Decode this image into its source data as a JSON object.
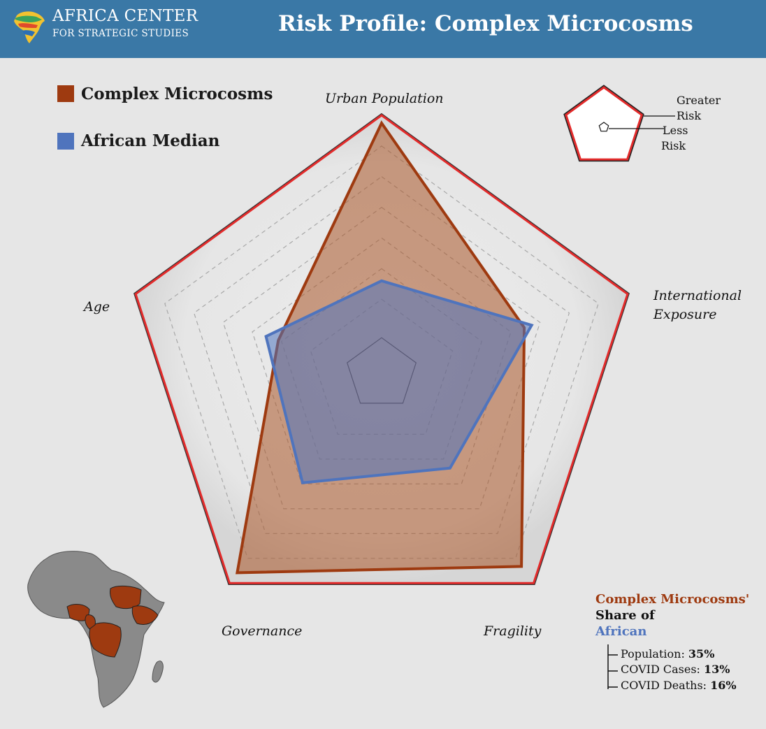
{
  "header": {
    "logo_line1": "AFRICA CENTER",
    "logo_line2": "FOR STRATEGIC STUDIES",
    "title": "Risk Profile: Complex Microcosms"
  },
  "legend": [
    {
      "label": "Complex Microcosms",
      "color": "#9e3a10"
    },
    {
      "label": "African Median",
      "color": "#4f74bd"
    }
  ],
  "key": {
    "greater_label_line1": "Greater",
    "greater_label_line2": "Risk",
    "less_label_line1": "Less",
    "less_label_line2": "Risk"
  },
  "chart_data": {
    "type": "radar",
    "axes": [
      "Urban Population",
      "International Exposure",
      "Fragility",
      "Governance",
      "Age"
    ],
    "axis_label_lines": [
      [
        "Urban Population"
      ],
      [
        "International",
        "Exposure"
      ],
      [
        "Fragility"
      ],
      [
        "Governance"
      ],
      [
        "Age"
      ]
    ],
    "range": [
      0,
      1
    ],
    "grid_levels": 7,
    "series": [
      {
        "name": "Complex Microcosms",
        "values": [
          0.97,
          0.58,
          0.92,
          0.95,
          0.42
        ],
        "color": "#9e3a10"
      },
      {
        "name": "African Median",
        "values": [
          0.36,
          0.61,
          0.45,
          0.52,
          0.47
        ],
        "color": "#4f74bd"
      }
    ]
  },
  "share": {
    "title_line1": "Complex Microcosms'",
    "title_line2": "Share of",
    "title_line3": "African",
    "rows": [
      {
        "label": "Population: ",
        "value": "35%"
      },
      {
        "label": "COVID Cases: ",
        "value": "13%"
      },
      {
        "label": "COVID Deaths: ",
        "value": "16%"
      }
    ]
  }
}
